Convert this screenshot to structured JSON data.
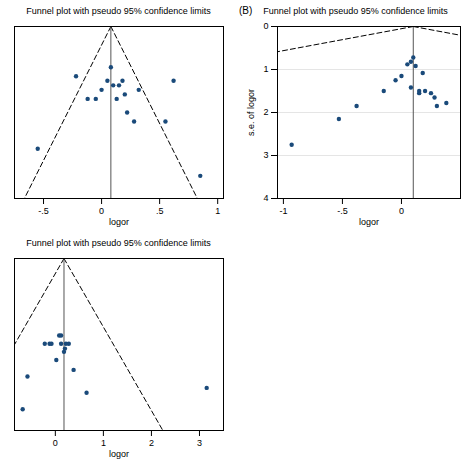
{
  "chart_data": [
    {
      "type": "scatter",
      "title": "Funnel plot with pseudo 95% confidence limits",
      "xlabel": "logor",
      "x": [
        -0.55,
        -0.22,
        -0.12,
        -0.05,
        0.0,
        0.05,
        0.08,
        0.1,
        0.13,
        0.15,
        0.18,
        0.2,
        0.22,
        0.28,
        0.32,
        0.55,
        0.62,
        0.85
      ],
      "values": [
        0.27,
        0.11,
        0.16,
        0.16,
        0.14,
        0.12,
        0.09,
        0.13,
        0.16,
        0.13,
        0.12,
        0.15,
        0.19,
        0.21,
        0.14,
        0.21,
        0.12,
        0.33
      ],
      "color": "#1A4A7A",
      "lines": [
        {
          "x": [
            0.08,
            -0.6648
          ],
          "values": [
            0,
            0.38
          ],
          "line_style": "dashed",
          "color": "#000000"
        },
        {
          "x": [
            0.08,
            0.8248
          ],
          "values": [
            0,
            0.38
          ],
          "line_style": "dashed",
          "color": "#000000"
        },
        {
          "x": [
            0.08,
            0.08
          ],
          "values": [
            0,
            0.38
          ],
          "line_style": "solid",
          "color": "#555555"
        }
      ],
      "xlim": [
        -0.75,
        1.05
      ],
      "ylim": [
        0.38,
        0.0
      ],
      "xticks": [
        {
          "value": -0.5,
          "label": "-.5"
        },
        0,
        {
          "value": 0.5,
          "label": ".5"
        },
        1
      ],
      "tick_labels": "x",
      "grid": false
    },
    {
      "type": "scatter",
      "title": "Funnel plot with pseudo 95% confidence limits",
      "annotation": "(B)",
      "xlabel": "logor",
      "ylabel": "s.e. of logor",
      "x": [
        -0.93,
        -0.53,
        -0.38,
        -0.15,
        -0.05,
        0.0,
        0.05,
        0.08,
        0.08,
        0.1,
        0.12,
        0.15,
        0.15,
        0.18,
        0.2,
        0.25,
        0.28,
        0.3,
        0.38
      ],
      "values": [
        2.75,
        2.15,
        1.85,
        1.5,
        1.25,
        1.15,
        0.88,
        0.82,
        1.42,
        0.72,
        0.92,
        1.5,
        1.55,
        1.08,
        1.5,
        1.55,
        1.65,
        1.85,
        1.78
      ],
      "color": "#1A4A7A",
      "lines": [
        {
          "x": [
            0.1,
            -1.05
          ],
          "values": [
            0,
            0.586734693877551
          ],
          "line_style": "dashed",
          "color": "#000000"
        },
        {
          "x": [
            0.1,
            0.5
          ],
          "values": [
            0,
            0.20408163265306123
          ],
          "line_style": "dashed",
          "color": "#000000"
        },
        {
          "x": [
            0.1,
            0.1
          ],
          "values": [
            0,
            4.0
          ],
          "line_style": "solid",
          "color": "#555555"
        }
      ],
      "xlim": [
        -1.05,
        0.5
      ],
      "ylim": [
        4.0,
        0.0
      ],
      "xticks": [
        -1,
        {
          "value": -0.5,
          "label": "-.5"
        },
        0
      ],
      "yticks": [
        0,
        1,
        2,
        3,
        4
      ],
      "grid": true
    },
    {
      "type": "scatter",
      "title": "Funnel plot with pseudo 95% confidence limits",
      "xlabel": "logor",
      "x": [
        -0.68,
        -0.58,
        -0.22,
        -0.12,
        -0.08,
        0.02,
        0.08,
        0.12,
        0.12,
        0.18,
        0.2,
        0.22,
        0.28,
        0.38,
        0.65,
        3.15
      ],
      "values": [
        0.92,
        0.72,
        0.52,
        0.52,
        0.52,
        0.62,
        0.47,
        0.47,
        0.52,
        0.57,
        0.55,
        0.52,
        0.52,
        0.68,
        0.82,
        0.79
      ],
      "color": "#1A4A7A",
      "lines": [
        {
          "x": [
            0.18,
            -0.85
          ],
          "values": [
            0,
            0.5255102040816327
          ],
          "line_style": "dashed",
          "color": "#000000"
        },
        {
          "x": [
            0.18,
            2.238
          ],
          "values": [
            0,
            1.05
          ],
          "line_style": "dashed",
          "color": "#000000"
        },
        {
          "x": [
            0.18,
            0.18
          ],
          "values": [
            0,
            1.05
          ],
          "line_style": "solid",
          "color": "#555555"
        }
      ],
      "xlim": [
        -0.85,
        3.5
      ],
      "ylim": [
        1.05,
        0.0
      ],
      "xticks": [
        0,
        1,
        2,
        3
      ],
      "tick_labels": "x",
      "grid": false
    }
  ]
}
